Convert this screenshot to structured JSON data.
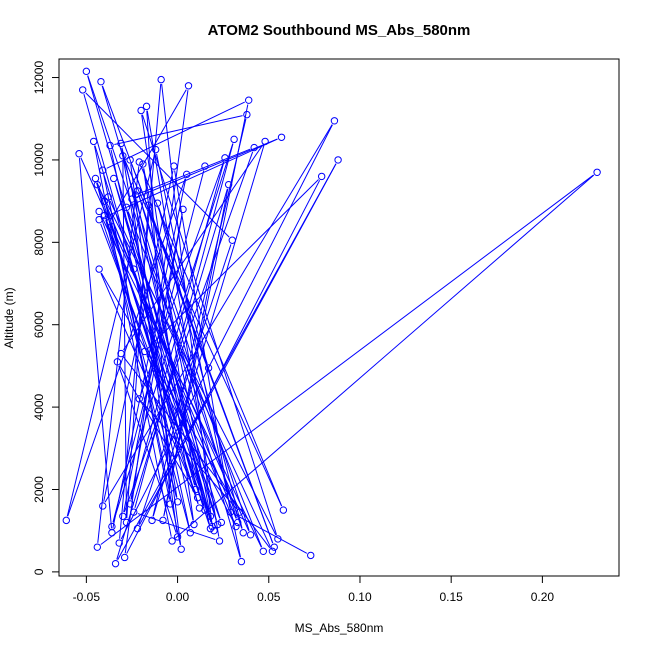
{
  "chart_data": {
    "type": "line",
    "title": "ATOM2 Southbound MS_Abs_580nm",
    "xlabel": "MS_Abs_580nm",
    "ylabel": "Altitude (m)",
    "xlim": [
      -0.065,
      0.242
    ],
    "ylim": [
      -100,
      12450
    ],
    "x_ticks": [
      -0.05,
      0.0,
      0.05,
      0.1,
      0.15,
      0.2
    ],
    "x_tick_labels": [
      "-0.05",
      "0.00",
      "0.05",
      "0.10",
      "0.15",
      "0.20"
    ],
    "y_ticks": [
      0,
      2000,
      4000,
      6000,
      8000,
      10000,
      12000
    ],
    "y_tick_labels": [
      "0",
      "2000",
      "4000",
      "6000",
      "8000",
      "10000",
      "12000"
    ],
    "grid": false,
    "marker": "open-circle",
    "series_color": "#0000ff",
    "series": [
      {
        "x": [
          0.073,
          0.029,
          -0.002,
          -0.041,
          0.086,
          -0.032,
          -0.009,
          0.019,
          -0.046,
          -0.003,
          0.23,
          -0.044,
          -0.021,
          0.058,
          -0.03,
          -0.028,
          -0.016,
          0.053,
          -0.042,
          0.035,
          -0.012,
          -0.061,
          0.005,
          -0.036,
          -0.054,
          0.04,
          -0.022,
          0.033,
          -0.04,
          0.012,
          -0.043,
          0.047,
          -0.028,
          0.02,
          -0.035,
          0.024,
          -0.04,
          0.0,
          -0.031,
          0.018,
          -0.044,
          0.055,
          -0.02,
          0.01,
          -0.052,
          0.03,
          -0.022,
          0.088,
          -0.034,
          0.028,
          -0.008,
          0.039,
          -0.041,
          0.002,
          -0.026,
          0.017,
          -0.011,
          0.036,
          -0.05,
          0.022,
          -0.024,
          0.007,
          -0.045,
          0.032,
          -0.018,
          0.079,
          -0.029,
          0.006,
          -0.037,
          0.015,
          -0.023,
          0.042,
          -0.03,
          0.003,
          -0.026,
          0.026,
          -0.021,
          0.034,
          -0.043,
          0.011,
          -0.033,
          0.0,
          -0.025,
          0.057,
          -0.043,
          0.018,
          -0.019,
          0.009,
          -0.037,
          0.038,
          -0.014,
          0.048,
          -0.031,
          0.052,
          -0.038,
          -0.004,
          -0.017,
          0.023,
          -0.024,
          0.031,
          -0.036,
          0.015
        ],
        "y": [
          400,
          1450,
          9850,
          1600,
          10950,
          700,
          11950,
          1100,
          10450,
          750,
          9700,
          600,
          9950,
          1500,
          10100,
          1200,
          8900,
          600,
          11900,
          250,
          10250,
          1250,
          9650,
          950,
          10150,
          900,
          9250,
          1200,
          9000,
          1550,
          8750,
          500,
          8850,
          1000,
          9550,
          1200,
          8650,
          1700,
          10400,
          1050,
          9400,
          800,
          11200,
          2000,
          11700,
          8050,
          1050,
          10000,
          200,
          9400,
          1250,
          11450,
          9750,
          550,
          10000,
          4950,
          8950,
          950,
          12150,
          1150,
          7350,
          950,
          9550,
          1100,
          5350,
          9600,
          350,
          11800,
          8500,
          1500,
          9150,
          10300,
          1350,
          8800,
          1650,
          10050,
          4200,
          1450,
          7350,
          1800,
          5100,
          850,
          9050,
          10550,
          8550,
          1350,
          9900,
          1150,
          10350,
          11100,
          1250,
          10450,
          5300,
          500,
          9100,
          1650,
          11300,
          750,
          1450,
          10500,
          1100,
          9850
        ]
      }
    ]
  }
}
